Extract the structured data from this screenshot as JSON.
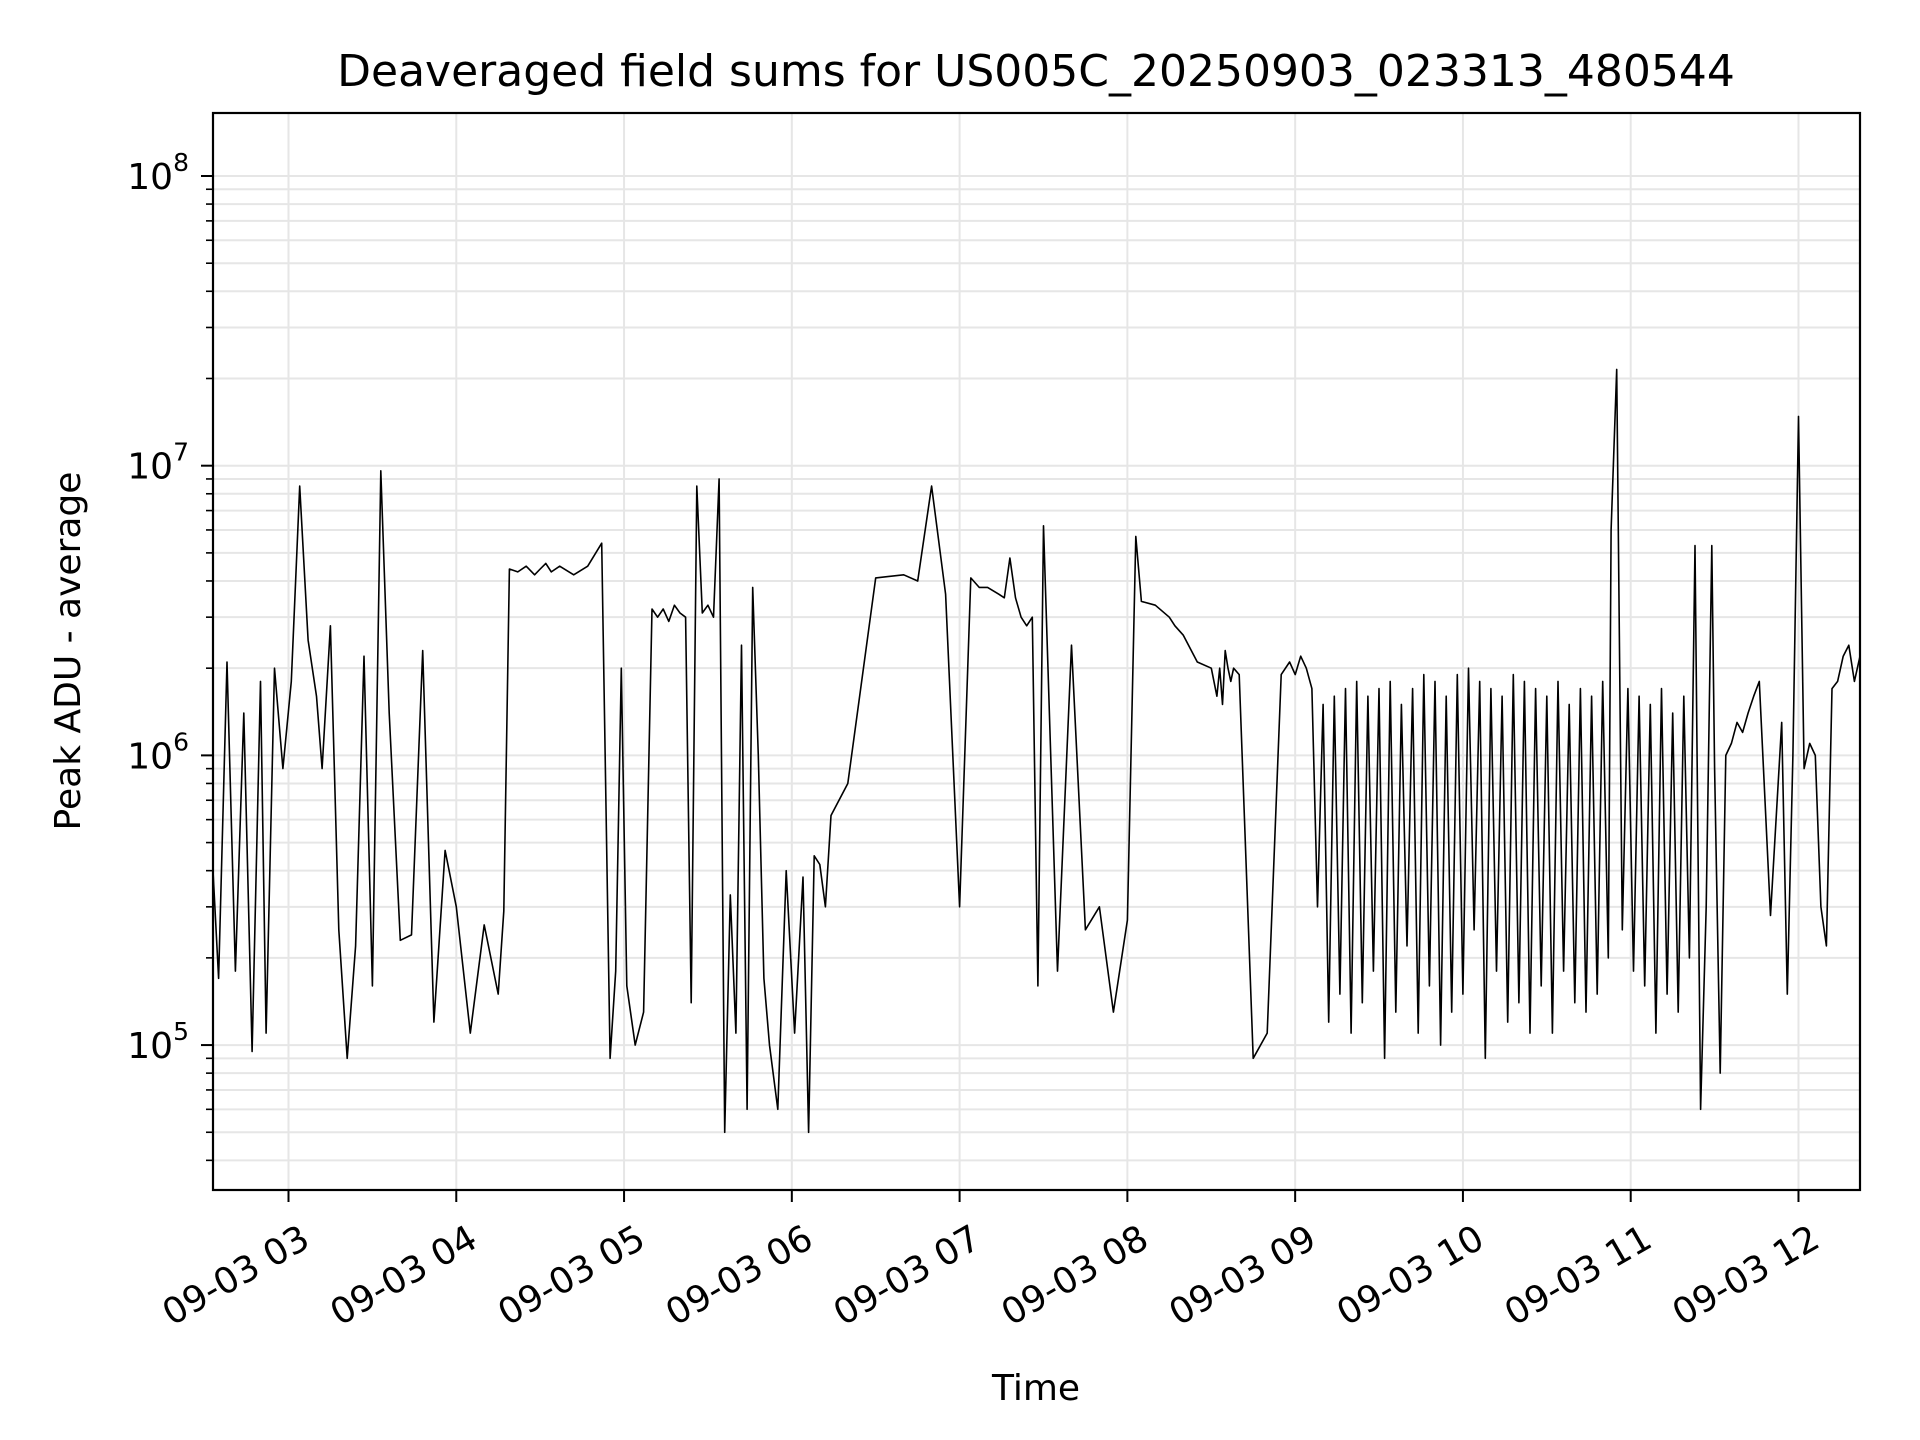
{
  "chart_data": {
    "type": "line",
    "title": "Deaveraged field sums for US005C_20250903_023313_480544",
    "xlabel": "Time",
    "ylabel": "Peak ADU - average",
    "y_scale": "log",
    "ylim": [
      31600,
      165000000
    ],
    "xlim": [
      "2025-09-03 02:33",
      "2025-09-03 12:22"
    ],
    "grid": true,
    "line_color": "#000000",
    "grid_color": "#e6e6e6",
    "y_ticks": [
      {
        "value": 100000,
        "base": "10",
        "exp": "5"
      },
      {
        "value": 1000000,
        "base": "10",
        "exp": "6"
      },
      {
        "value": 10000000,
        "base": "10",
        "exp": "7"
      },
      {
        "value": 100000000,
        "base": "10",
        "exp": "8"
      }
    ],
    "x_ticks": [
      {
        "time": "2025-09-03 03:00",
        "label": "09-03 03"
      },
      {
        "time": "2025-09-03 04:00",
        "label": "09-03 04"
      },
      {
        "time": "2025-09-03 05:00",
        "label": "09-03 05"
      },
      {
        "time": "2025-09-03 06:00",
        "label": "09-03 06"
      },
      {
        "time": "2025-09-03 07:00",
        "label": "09-03 07"
      },
      {
        "time": "2025-09-03 08:00",
        "label": "09-03 08"
      },
      {
        "time": "2025-09-03 09:00",
        "label": "09-03 09"
      },
      {
        "time": "2025-09-03 10:00",
        "label": "09-03 10"
      },
      {
        "time": "2025-09-03 11:00",
        "label": "09-03 11"
      },
      {
        "time": "2025-09-03 12:00",
        "label": "09-03 12"
      }
    ],
    "series": [
      {
        "x": [
          "2025-09-03 02:33",
          "2025-09-03 02:35",
          "2025-09-03 02:38",
          "2025-09-03 02:41",
          "2025-09-03 02:44",
          "2025-09-03 02:47",
          "2025-09-03 02:50",
          "2025-09-03 02:52",
          "2025-09-03 02:55",
          "2025-09-03 02:58",
          "2025-09-03 03:01",
          "2025-09-03 03:04",
          "2025-09-03 03:07",
          "2025-09-03 03:10",
          "2025-09-03 03:12",
          "2025-09-03 03:15",
          "2025-09-03 03:18",
          "2025-09-03 03:21",
          "2025-09-03 03:24",
          "2025-09-03 03:27",
          "2025-09-03 03:30",
          "2025-09-03 03:33",
          "2025-09-03 03:36",
          "2025-09-03 03:40",
          "2025-09-03 03:44",
          "2025-09-03 03:48",
          "2025-09-03 03:52",
          "2025-09-03 03:56",
          "2025-09-03 04:00",
          "2025-09-03 04:05",
          "2025-09-03 04:10",
          "2025-09-03 04:15",
          "2025-09-03 04:17",
          "2025-09-03 04:19",
          "2025-09-03 04:22",
          "2025-09-03 04:25",
          "2025-09-03 04:28",
          "2025-09-03 04:30",
          "2025-09-03 04:32",
          "2025-09-03 04:34",
          "2025-09-03 04:37",
          "2025-09-03 04:42",
          "2025-09-03 04:47",
          "2025-09-03 04:52",
          "2025-09-03 04:55",
          "2025-09-03 04:57",
          "2025-09-03 04:59",
          "2025-09-03 05:01",
          "2025-09-03 05:04",
          "2025-09-03 05:07",
          "2025-09-03 05:10",
          "2025-09-03 05:12",
          "2025-09-03 05:14",
          "2025-09-03 05:16",
          "2025-09-03 05:18",
          "2025-09-03 05:20",
          "2025-09-03 05:22",
          "2025-09-03 05:24",
          "2025-09-03 05:26",
          "2025-09-03 05:28",
          "2025-09-03 05:30",
          "2025-09-03 05:32",
          "2025-09-03 05:34",
          "2025-09-03 05:36",
          "2025-09-03 05:38",
          "2025-09-03 05:40",
          "2025-09-03 05:42",
          "2025-09-03 05:44",
          "2025-09-03 05:46",
          "2025-09-03 05:48",
          "2025-09-03 05:50",
          "2025-09-03 05:52",
          "2025-09-03 05:55",
          "2025-09-03 05:58",
          "2025-09-03 06:01",
          "2025-09-03 06:04",
          "2025-09-03 06:06",
          "2025-09-03 06:08",
          "2025-09-03 06:10",
          "2025-09-03 06:12",
          "2025-09-03 06:14",
          "2025-09-03 06:20",
          "2025-09-03 06:30",
          "2025-09-03 06:40",
          "2025-09-03 06:45",
          "2025-09-03 06:50",
          "2025-09-03 06:55",
          "2025-09-03 07:00",
          "2025-09-03 07:04",
          "2025-09-03 07:07",
          "2025-09-03 07:10",
          "2025-09-03 07:12",
          "2025-09-03 07:14",
          "2025-09-03 07:16",
          "2025-09-03 07:18",
          "2025-09-03 07:20",
          "2025-09-03 07:22",
          "2025-09-03 07:24",
          "2025-09-03 07:26",
          "2025-09-03 07:28",
          "2025-09-03 07:30",
          "2025-09-03 07:35",
          "2025-09-03 07:40",
          "2025-09-03 07:45",
          "2025-09-03 07:50",
          "2025-09-03 07:55",
          "2025-09-03 08:00",
          "2025-09-03 08:03",
          "2025-09-03 08:05",
          "2025-09-03 08:10",
          "2025-09-03 08:15",
          "2025-09-03 08:17",
          "2025-09-03 08:20",
          "2025-09-03 08:25",
          "2025-09-03 08:30",
          "2025-09-03 08:32",
          "2025-09-03 08:33",
          "2025-09-03 08:34",
          "2025-09-03 08:35",
          "2025-09-03 08:36",
          "2025-09-03 08:37",
          "2025-09-03 08:38",
          "2025-09-03 08:40",
          "2025-09-03 08:45",
          "2025-09-03 08:50",
          "2025-09-03 08:55",
          "2025-09-03 08:58",
          "2025-09-03 09:00",
          "2025-09-03 09:02",
          "2025-09-03 09:04",
          "2025-09-03 09:06",
          "2025-09-03 09:08",
          "2025-09-03 09:10",
          "2025-09-03 09:12",
          "2025-09-03 09:14",
          "2025-09-03 09:16",
          "2025-09-03 09:18",
          "2025-09-03 09:20",
          "2025-09-03 09:22",
          "2025-09-03 09:24",
          "2025-09-03 09:26",
          "2025-09-03 09:28",
          "2025-09-03 09:30",
          "2025-09-03 09:32",
          "2025-09-03 09:34",
          "2025-09-03 09:36",
          "2025-09-03 09:38",
          "2025-09-03 09:40",
          "2025-09-03 09:42",
          "2025-09-03 09:44",
          "2025-09-03 09:46",
          "2025-09-03 09:48",
          "2025-09-03 09:50",
          "2025-09-03 09:52",
          "2025-09-03 09:54",
          "2025-09-03 09:56",
          "2025-09-03 09:58",
          "2025-09-03 10:00",
          "2025-09-03 10:02",
          "2025-09-03 10:04",
          "2025-09-03 10:06",
          "2025-09-03 10:08",
          "2025-09-03 10:10",
          "2025-09-03 10:12",
          "2025-09-03 10:14",
          "2025-09-03 10:16",
          "2025-09-03 10:18",
          "2025-09-03 10:20",
          "2025-09-03 10:22",
          "2025-09-03 10:24",
          "2025-09-03 10:26",
          "2025-09-03 10:28",
          "2025-09-03 10:30",
          "2025-09-03 10:32",
          "2025-09-03 10:34",
          "2025-09-03 10:36",
          "2025-09-03 10:38",
          "2025-09-03 10:40",
          "2025-09-03 10:42",
          "2025-09-03 10:44",
          "2025-09-03 10:46",
          "2025-09-03 10:48",
          "2025-09-03 10:50",
          "2025-09-03 10:52",
          "2025-09-03 10:53",
          "2025-09-03 10:55",
          "2025-09-03 10:57",
          "2025-09-03 10:59",
          "2025-09-03 11:01",
          "2025-09-03 11:03",
          "2025-09-03 11:05",
          "2025-09-03 11:07",
          "2025-09-03 11:09",
          "2025-09-03 11:11",
          "2025-09-03 11:13",
          "2025-09-03 11:15",
          "2025-09-03 11:17",
          "2025-09-03 11:19",
          "2025-09-03 11:21",
          "2025-09-03 11:23",
          "2025-09-03 11:25",
          "2025-09-03 11:27",
          "2025-09-03 11:29",
          "2025-09-03 11:30",
          "2025-09-03 11:32",
          "2025-09-03 11:34",
          "2025-09-03 11:36",
          "2025-09-03 11:38",
          "2025-09-03 11:40",
          "2025-09-03 11:42",
          "2025-09-03 11:44",
          "2025-09-03 11:46",
          "2025-09-03 11:50",
          "2025-09-03 11:54",
          "2025-09-03 11:56",
          "2025-09-03 11:58",
          "2025-09-03 12:00",
          "2025-09-03 12:02",
          "2025-09-03 12:04",
          "2025-09-03 12:06",
          "2025-09-03 12:08",
          "2025-09-03 12:10",
          "2025-09-03 12:12",
          "2025-09-03 12:14",
          "2025-09-03 12:16",
          "2025-09-03 12:18",
          "2025-09-03 12:20",
          "2025-09-03 12:22"
        ],
        "y": [
          400000,
          170000,
          2100000,
          180000,
          1400000,
          95000,
          1800000,
          110000,
          2000000,
          900000,
          1800000,
          8500000,
          2500000,
          1600000,
          900000,
          2800000,
          250000,
          90000,
          220000,
          2200000,
          160000,
          9600000,
          1400000,
          230000,
          240000,
          2300000,
          120000,
          470000,
          300000,
          110000,
          260000,
          150000,
          290000,
          4400000,
          4300000,
          4500000,
          4200000,
          4400000,
          4600000,
          4300000,
          4500000,
          4200000,
          4500000,
          5400000,
          90000,
          180000,
          2000000,
          160000,
          100000,
          130000,
          3200000,
          3000000,
          3200000,
          2900000,
          3300000,
          3100000,
          3000000,
          140000,
          8500000,
          3100000,
          3300000,
          3000000,
          9000000,
          50000,
          330000,
          110000,
          2400000,
          60000,
          3800000,
          1000000,
          170000,
          100000,
          60000,
          400000,
          110000,
          380000,
          50000,
          450000,
          420000,
          300000,
          620000,
          800000,
          4100000,
          4200000,
          4000000,
          8500000,
          3600000,
          300000,
          4100000,
          3800000,
          3800000,
          3700000,
          3600000,
          3500000,
          4800000,
          3500000,
          3000000,
          2800000,
          3000000,
          160000,
          6200000,
          180000,
          2400000,
          250000,
          300000,
          130000,
          270000,
          5700000,
          3400000,
          3300000,
          3000000,
          2800000,
          2600000,
          2100000,
          2000000,
          1600000,
          2000000,
          1500000,
          2300000,
          2000000,
          1800000,
          2000000,
          1900000,
          90000,
          110000,
          1900000,
          2100000,
          1900000,
          2200000,
          2000000,
          1700000,
          300000,
          1500000,
          120000,
          1600000,
          150000,
          1700000,
          110000,
          1800000,
          140000,
          1600000,
          180000,
          1700000,
          90000,
          1800000,
          130000,
          1500000,
          220000,
          1700000,
          110000,
          1900000,
          160000,
          1800000,
          100000,
          1600000,
          130000,
          1900000,
          150000,
          2000000,
          250000,
          1800000,
          90000,
          1700000,
          180000,
          1600000,
          120000,
          1900000,
          140000,
          1800000,
          110000,
          1700000,
          160000,
          1600000,
          110000,
          1800000,
          180000,
          1500000,
          140000,
          1700000,
          130000,
          1600000,
          150000,
          1800000,
          200000,
          6000000,
          21500000,
          250000,
          1700000,
          180000,
          1600000,
          160000,
          1500000,
          110000,
          1700000,
          150000,
          1400000,
          130000,
          1600000,
          200000,
          5300000,
          60000,
          300000,
          5300000,
          900000,
          80000,
          1000000,
          1100000,
          1300000,
          1200000,
          1400000,
          1600000,
          1800000,
          280000,
          1300000,
          150000,
          1000000,
          14800000,
          900000,
          1100000,
          1000000,
          300000,
          220000,
          1700000,
          1800000,
          2200000,
          2400000,
          1800000,
          2200000
        ]
      }
    ]
  }
}
